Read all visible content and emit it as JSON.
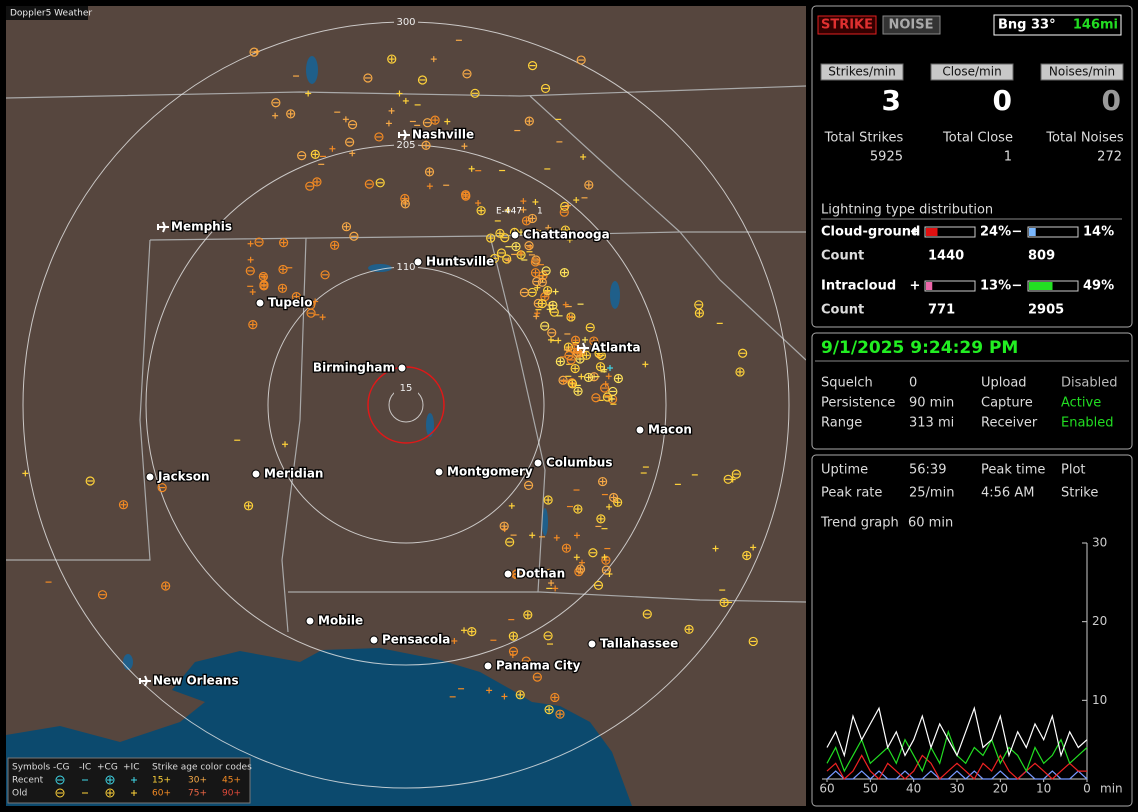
{
  "map": {
    "title": "Doppler5 Weather",
    "ring_labels": [
      "300",
      "205",
      "110",
      "15"
    ],
    "cities": [
      "Nashville",
      "Memphis",
      "Chattanooga",
      "Huntsville",
      "Tupelo",
      "Birmingham",
      "Atlanta",
      "Macon",
      "Jackson",
      "Meridian",
      "Montgomery",
      "Columbus",
      "Dothan",
      "Mobile",
      "Pensacola",
      "Panama City",
      "Tallahassee",
      "New Orleans"
    ],
    "annotation": [
      "E-447",
      "1"
    ]
  },
  "legend": {
    "header": [
      "Symbols",
      "-CG",
      "-IC",
      "+CG",
      "+IC",
      "Strike age color codes"
    ],
    "rows": [
      {
        "label": "Recent",
        "ages": [
          "15+",
          "30+",
          "45+"
        ]
      },
      {
        "label": "Old",
        "ages": [
          "60+",
          "75+",
          "90+"
        ]
      }
    ]
  },
  "status": {
    "mode_buttons": [
      "STRIKE",
      "NOISE"
    ],
    "bearing": "Bng 33°",
    "distance": "146mi",
    "counters": [
      {
        "button": "Strikes/min",
        "value": 3,
        "total_label": "Total Strikes",
        "total": 5925
      },
      {
        "button": "Close/min",
        "value": 0,
        "total_label": "Total Close",
        "total": 1
      },
      {
        "button": "Noises/min",
        "value": 0,
        "total_label": "Total Noises",
        "total": 272
      }
    ]
  },
  "distribution": {
    "title": "Lightning type distribution",
    "count_label": "Count",
    "pos_sign": "+",
    "neg_sign": "−",
    "rows": [
      {
        "name": "Cloud-ground",
        "pos": {
          "value": 24,
          "label": "24%"
        },
        "neg": {
          "value": 14,
          "label": "14%"
        },
        "pos_count": 1440,
        "neg_count": 809
      },
      {
        "name": "Intracloud",
        "pos": {
          "value": 13,
          "label": "13%"
        },
        "neg": {
          "value": 49,
          "label": "49%"
        },
        "pos_count": 771,
        "neg_count": 2905
      }
    ]
  },
  "settings": {
    "datetime": "9/1/2025 9:24:29 PM",
    "rows": [
      [
        "Squelch",
        "0",
        "Upload",
        "Disabled"
      ],
      [
        "Persistence",
        "90 min",
        "Capture",
        "Active"
      ],
      [
        "Range",
        "313 mi",
        "Receiver",
        "Enabled"
      ]
    ]
  },
  "stats": {
    "rows": [
      [
        "Uptime",
        "56:39",
        "Peak time",
        "Plot"
      ],
      [
        "Peak rate",
        "25/min",
        "4:56 AM",
        "Strike"
      ]
    ],
    "trend_label": "Trend graph",
    "trend_span": "60 min"
  },
  "chart_data": {
    "type": "line",
    "x_unit": "min",
    "xlim": [
      60,
      0
    ],
    "xticks": [
      60,
      50,
      40,
      30,
      20,
      10,
      0
    ],
    "ylim": [
      0,
      30
    ],
    "yticks": [
      10,
      20,
      30
    ],
    "x": [
      60,
      58,
      56,
      54,
      52,
      50,
      48,
      46,
      44,
      42,
      40,
      38,
      36,
      34,
      32,
      30,
      28,
      26,
      24,
      22,
      20,
      18,
      16,
      14,
      12,
      10,
      8,
      6,
      4,
      2,
      0
    ],
    "series": [
      {
        "color": "#ffffff",
        "values": [
          4,
          6,
          3,
          8,
          5,
          7,
          9,
          4,
          6,
          3,
          5,
          8,
          4,
          7,
          5,
          3,
          6,
          9,
          4,
          5,
          8,
          3,
          6,
          4,
          7,
          5,
          8,
          3,
          6,
          4,
          5
        ]
      },
      {
        "color": "#22dd22",
        "values": [
          2,
          4,
          1,
          3,
          5,
          2,
          3,
          4,
          2,
          5,
          3,
          1,
          4,
          2,
          6,
          3,
          2,
          4,
          3,
          5,
          2,
          4,
          3,
          1,
          4,
          2,
          3,
          5,
          2,
          3,
          4
        ]
      },
      {
        "color": "#ee2222",
        "values": [
          1,
          2,
          0,
          1,
          3,
          1,
          0,
          2,
          1,
          0,
          1,
          3,
          2,
          0,
          1,
          2,
          1,
          0,
          2,
          1,
          3,
          1,
          0,
          1,
          2,
          1,
          0,
          1,
          2,
          1,
          1
        ]
      },
      {
        "color": "#7799ff",
        "values": [
          0,
          1,
          0,
          0,
          1,
          0,
          1,
          0,
          0,
          1,
          0,
          0,
          1,
          0,
          0,
          1,
          0,
          1,
          0,
          0,
          1,
          0,
          0,
          1,
          0,
          0,
          1,
          0,
          0,
          1,
          0
        ]
      }
    ]
  }
}
